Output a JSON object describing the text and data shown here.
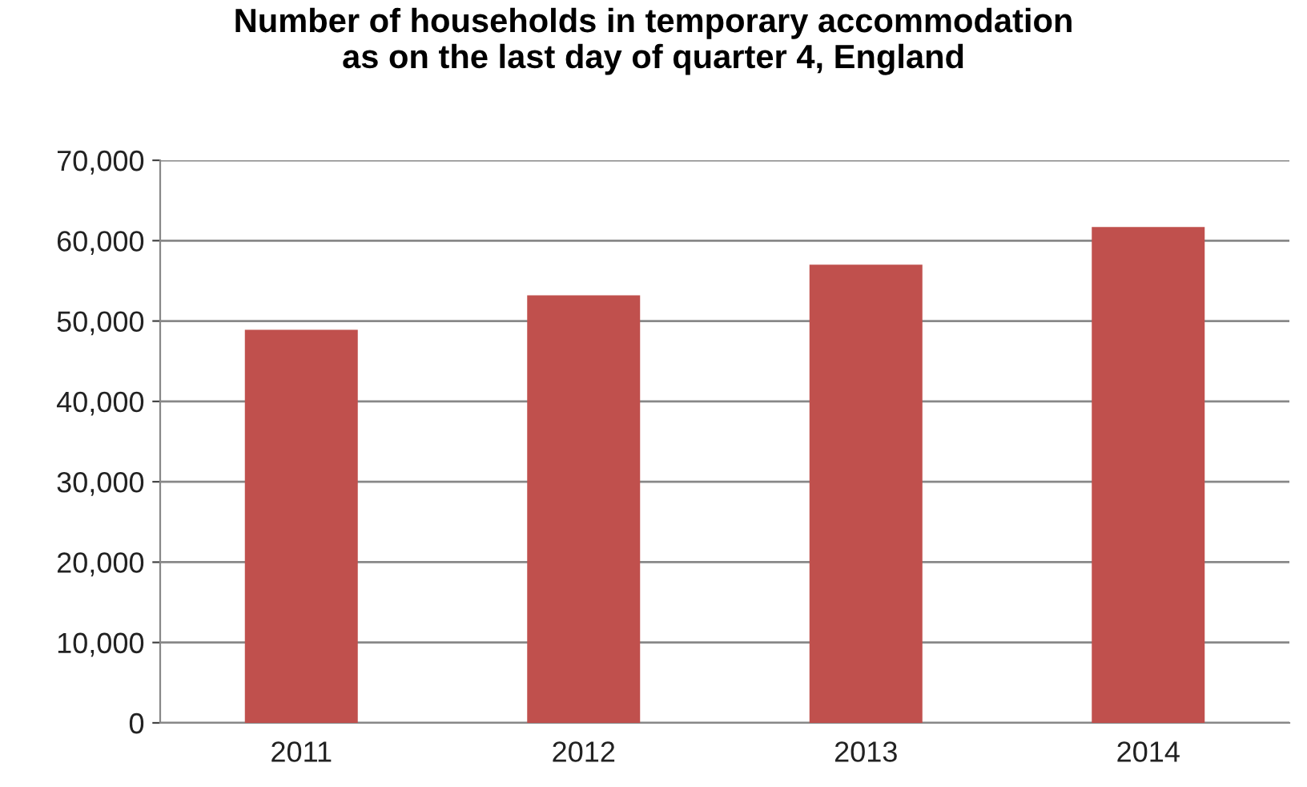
{
  "chart_data": {
    "type": "bar",
    "title": "Number of households in temporary accommodation\nas on the last day of quarter 4, England",
    "categories": [
      "2011",
      "2012",
      "2013",
      "2014"
    ],
    "values": [
      48900,
      53200,
      57000,
      61700
    ],
    "color": "#c0504d",
    "ylim": [
      0,
      70000
    ],
    "yticks": [
      {
        "value": 0,
        "label": "0"
      },
      {
        "value": 10000,
        "label": "10,000"
      },
      {
        "value": 20000,
        "label": "20,000"
      },
      {
        "value": 30000,
        "label": "30,000"
      },
      {
        "value": 40000,
        "label": "40,000"
      },
      {
        "value": 50000,
        "label": "50,000"
      },
      {
        "value": 60000,
        "label": "60,000"
      },
      {
        "value": 70000,
        "label": "70,000"
      }
    ],
    "grid": "y"
  }
}
